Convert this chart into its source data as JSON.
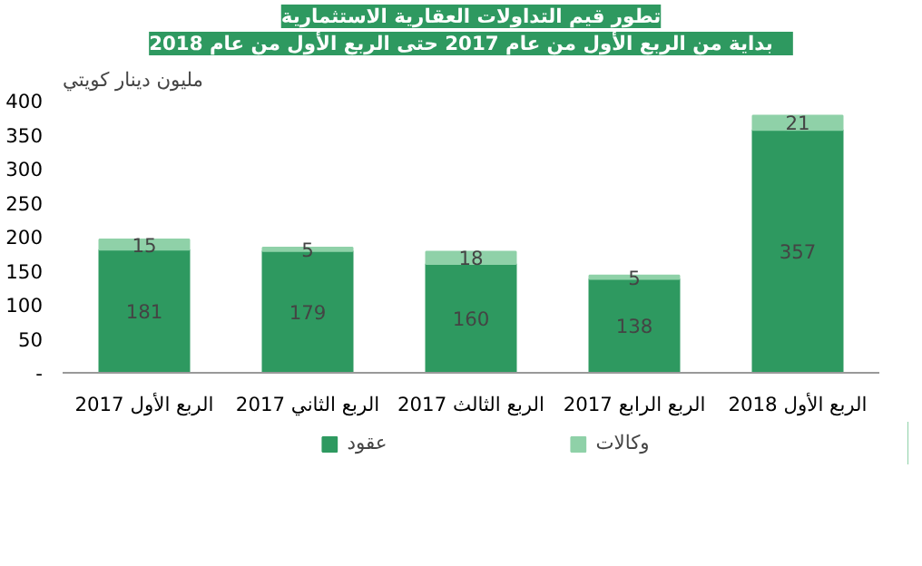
{
  "chart_data": {
    "type": "bar",
    "stacked": true,
    "title": "تطور قيم التداولات العقارية الاستثمارية",
    "subtitle": "بداية من الربع الأول من عام   2017 حتى الربع الأول من عام  2018",
    "ylabel": "مليون دينار كويتي",
    "categories": [
      "الربع الأول 2017",
      "الربع الثاني 2017",
      "الربع الثالث 2017",
      "الربع الرابع 2017",
      "الربع الأول 2018"
    ],
    "series": [
      {
        "name": "عقود",
        "color": "#2e9960",
        "values": [
          181,
          179,
          160,
          138,
          357
        ]
      },
      {
        "name": "وكالات",
        "color": "#8fd1a8",
        "values": [
          15,
          5,
          18,
          5,
          21
        ]
      }
    ],
    "ylim": [
      0,
      400
    ],
    "yticks": [
      {
        "value": 0,
        "label": "-"
      },
      50,
      100,
      150,
      200,
      250,
      300,
      350,
      400
    ],
    "data_labels": true,
    "grid": false,
    "legend": "bottom"
  }
}
